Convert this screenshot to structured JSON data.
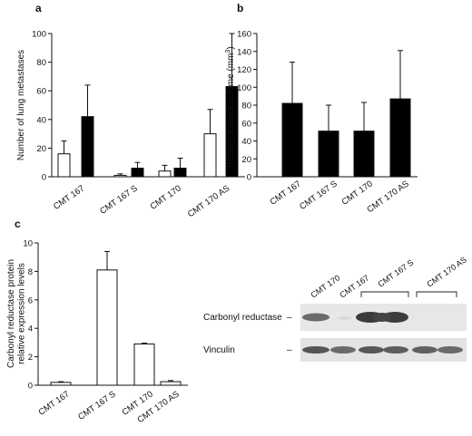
{
  "chart_data": [
    {
      "panel": "a",
      "type": "bar",
      "ylabel": "Number of lung metastases",
      "ylim": [
        0,
        100
      ],
      "yticks": [
        0,
        20,
        40,
        60,
        80,
        100
      ],
      "categories": [
        "CMT 167",
        "CMT 167 S",
        "CMT 170",
        "CMT 170 AS"
      ],
      "series": [
        {
          "fill": "#ffffff",
          "values": [
            16,
            1,
            4,
            30
          ],
          "errors": [
            9,
            1,
            4,
            17
          ]
        },
        {
          "fill": "#000000",
          "values": [
            42,
            6,
            6,
            63
          ],
          "errors": [
            22,
            4,
            7,
            37
          ]
        }
      ]
    },
    {
      "panel": "b",
      "type": "bar",
      "ylabel": "Primary tumour volume (mm",
      "ylabel_sup": "3",
      "ylabel_end": ")",
      "ylim": [
        0,
        160
      ],
      "yticks": [
        0,
        20,
        40,
        60,
        80,
        100,
        120,
        140,
        160
      ],
      "categories": [
        "CMT 167",
        "CMT 167 S",
        "CMT 170",
        "CMT 170 AS"
      ],
      "series": [
        {
          "fill": "#000000",
          "values": [
            82,
            51,
            51,
            87
          ],
          "errors": [
            46,
            29,
            32,
            54
          ]
        }
      ]
    },
    {
      "panel": "c",
      "type": "bar",
      "ylabel": "Carbonyl reductase protein",
      "ylabel2": "relative expression levels",
      "ylim": [
        0,
        10
      ],
      "yticks": [
        0,
        2,
        4,
        6,
        8,
        10
      ],
      "categories": [
        "CMT 167",
        "CMT 167 S",
        "CMT 170",
        "CMT 170 AS"
      ],
      "series": [
        {
          "fill": "#ffffff",
          "values": [
            0.2,
            8.1,
            2.9,
            0.25
          ],
          "errors": [
            0.05,
            1.3,
            0.06,
            0.08
          ]
        }
      ]
    }
  ],
  "blot": {
    "lanes": [
      "CMT 170",
      "CMT 167",
      "CMT 167 S",
      "CMT 170 AS"
    ],
    "rows": [
      {
        "label": "Carbonyl reductase",
        "marker": "–"
      },
      {
        "label": "Vinculin",
        "marker": "–"
      }
    ]
  }
}
